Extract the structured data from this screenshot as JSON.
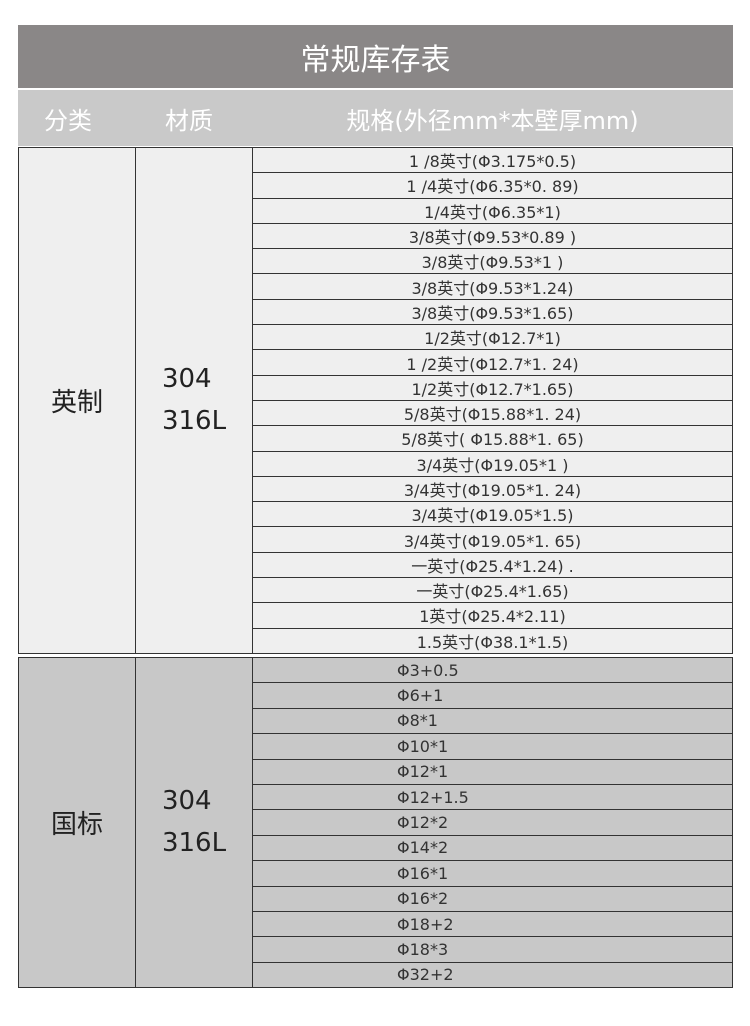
{
  "title": "常规库存表",
  "header": {
    "category": "分类",
    "material": "材质",
    "spec": "规格(外径mm*本壁厚mm)"
  },
  "sections": [
    {
      "category": "英制",
      "material": [
        "304",
        "316L"
      ],
      "specs": [
        "1 /8英寸(Φ3.175*0.5)",
        "1 /4英寸(Φ6.35*0. 89)",
        "1/4英寸(Φ6.35*1)",
        "3/8英寸(Φ9.53*0.89 )",
        "3/8英寸(Φ9.53*1 )",
        "3/8英寸(Φ9.53*1.24)",
        "3/8英寸(Φ9.53*1.65)",
        "1/2英寸(Φ12.7*1)",
        "1 /2英寸(Φ12.7*1. 24)",
        "1/2英寸(Φ12.7*1.65)",
        "5/8英寸(Φ15.88*1. 24)",
        "5/8英寸( Φ15.88*1. 65)",
        "3/4英寸(Φ19.05*1 )",
        "3/4英寸(Φ19.05*1. 24)",
        "3/4英寸(Φ19.05*1.5)",
        "3/4英寸(Φ19.05*1. 65)",
        "一英寸(Φ25.4*1.24) .",
        "一英寸(Φ25.4*1.65)",
        "1英寸(Φ25.4*2.11)",
        "1.5英寸(Φ38.1*1.5)"
      ]
    },
    {
      "category": "国标",
      "material": [
        "304",
        "316L"
      ],
      "specs": [
        "Φ3+0.5",
        "Φ6+1",
        "Φ8*1",
        "Φ10*1",
        "Φ12*1",
        "Φ12+1.5",
        "Φ12*2",
        "Φ14*2",
        "Φ16*1",
        "Φ16*2",
        "Φ18+2",
        "Φ18*3",
        "Φ32+2"
      ]
    }
  ]
}
